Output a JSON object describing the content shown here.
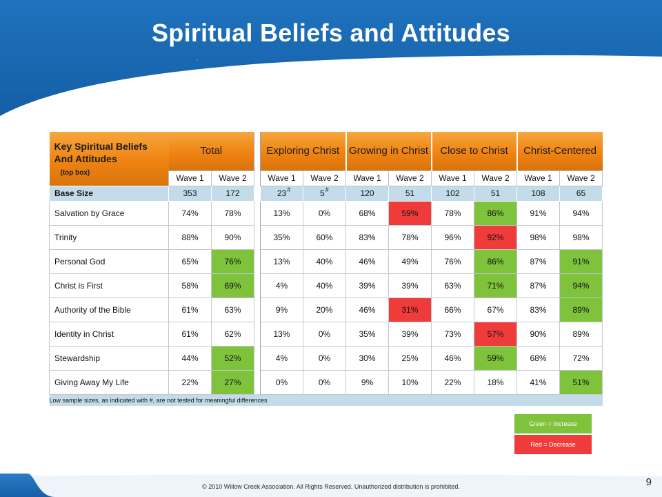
{
  "title": "Spiritual Beliefs and Attitudes",
  "table": {
    "header_title": "Key Spiritual Beliefs And Attitudes",
    "header_subtitle": "(top box)",
    "groups": [
      "Total",
      "Exploring Christ",
      "Growing in Christ",
      "Close to Christ",
      "Christ-Centered"
    ],
    "wave_labels": [
      "Wave 1",
      "Wave 2"
    ],
    "base": {
      "label": "Base Size",
      "values": [
        "353",
        "172",
        "23",
        "5",
        "120",
        "51",
        "102",
        "51",
        "108",
        "65"
      ],
      "marks": [
        "",
        "",
        "#",
        "#",
        "",
        "",
        "",
        "",
        "",
        ""
      ]
    },
    "rows": [
      {
        "label": "Salvation by Grace",
        "values": [
          "74%",
          "78%",
          "13%",
          "0%",
          "68%",
          "59%",
          "78%",
          "86%",
          "91%",
          "94%"
        ],
        "change": [
          "",
          "",
          "",
          "",
          "",
          "down",
          "",
          "up",
          "",
          ""
        ]
      },
      {
        "label": "Trinity",
        "values": [
          "88%",
          "90%",
          "35%",
          "60%",
          "83%",
          "78%",
          "96%",
          "92%",
          "98%",
          "98%"
        ],
        "change": [
          "",
          "",
          "",
          "",
          "",
          "",
          "",
          "down",
          "",
          ""
        ]
      },
      {
        "label": "Personal God",
        "values": [
          "65%",
          "76%",
          "13%",
          "40%",
          "46%",
          "49%",
          "76%",
          "86%",
          "87%",
          "91%"
        ],
        "change": [
          "",
          "up",
          "",
          "",
          "",
          "",
          "",
          "up",
          "",
          "up"
        ]
      },
      {
        "label": "Christ is First",
        "values": [
          "58%",
          "69%",
          "4%",
          "40%",
          "39%",
          "39%",
          "63%",
          "71%",
          "87%",
          "94%"
        ],
        "change": [
          "",
          "up",
          "",
          "",
          "",
          "",
          "",
          "up",
          "",
          "up"
        ]
      },
      {
        "label": "Authority of the Bible",
        "values": [
          "61%",
          "63%",
          "9%",
          "20%",
          "46%",
          "31%",
          "66%",
          "67%",
          "83%",
          "89%"
        ],
        "change": [
          "",
          "",
          "",
          "",
          "",
          "down",
          "",
          "",
          "",
          "up"
        ]
      },
      {
        "label": "Identity in Christ",
        "values": [
          "61%",
          "62%",
          "13%",
          "0%",
          "35%",
          "39%",
          "73%",
          "57%",
          "90%",
          "89%"
        ],
        "change": [
          "",
          "",
          "",
          "",
          "",
          "",
          "",
          "down",
          "",
          ""
        ]
      },
      {
        "label": "Stewardship",
        "values": [
          "44%",
          "52%",
          "4%",
          "0%",
          "30%",
          "25%",
          "46%",
          "59%",
          "68%",
          "72%"
        ],
        "change": [
          "",
          "up",
          "",
          "",
          "",
          "",
          "",
          "up",
          "",
          ""
        ]
      },
      {
        "label": "Giving Away My Life",
        "values": [
          "22%",
          "27%",
          "0%",
          "0%",
          "9%",
          "10%",
          "22%",
          "18%",
          "41%",
          "51%"
        ],
        "change": [
          "",
          "up",
          "",
          "",
          "",
          "",
          "",
          "",
          "",
          "up"
        ]
      }
    ],
    "footnote": "Low sample sizes, as indicated with #, are not tested for meaningful differences"
  },
  "legend": {
    "increase": "Green = Increase",
    "decrease": "Red = Decrease"
  },
  "colors": {
    "banner_blue": "#1b6db8",
    "header_orange": "#ef8311",
    "increase_green": "#7ec33b",
    "decrease_red": "#ef3c3a",
    "base_row_blue": "#c4dbe9"
  },
  "footer": {
    "copyright": "© 2010 Willow Creek Association.  All Rights Reserved.  Unauthorized distribution is prohibited.",
    "page_number": "9"
  }
}
